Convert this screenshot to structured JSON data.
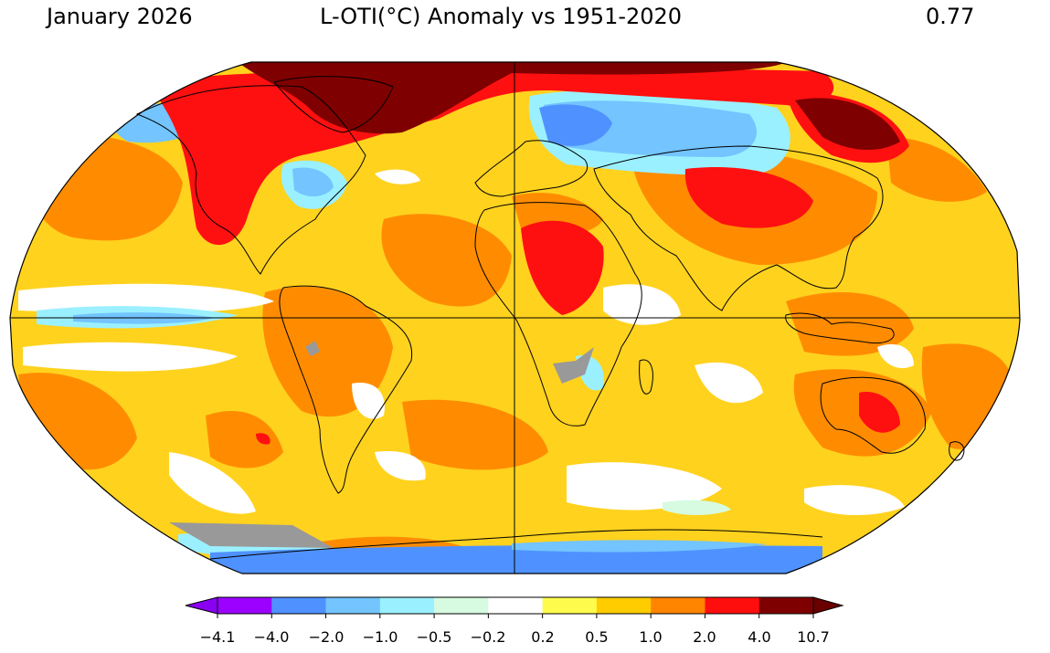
{
  "header": {
    "period": "January 2026",
    "title": "L-OTI(°C) Anomaly vs 1951-2020",
    "global_mean": "0.77"
  },
  "colorbar": {
    "ticks": [
      "−4.1",
      "−4.0",
      "−2.0",
      "−1.0",
      "−0.5",
      "−0.2",
      "0.2",
      "0.5",
      "1.0",
      "2.0",
      "4.0",
      "10.7"
    ],
    "colors": {
      "under": "#8a00f0",
      "bins": [
        "#9c00ff",
        "#4f92ff",
        "#73c4ff",
        "#9bf0ff",
        "#d6fbe0",
        "#ffffff",
        "#fffb4d",
        "#ffcc00",
        "#ff8400",
        "#ff0e0e",
        "#7f0000"
      ],
      "over": "#6a0000"
    }
  },
  "map": {
    "projection": "Robinson",
    "missing_color": "#999999",
    "base_color": "#ffd21e"
  }
}
